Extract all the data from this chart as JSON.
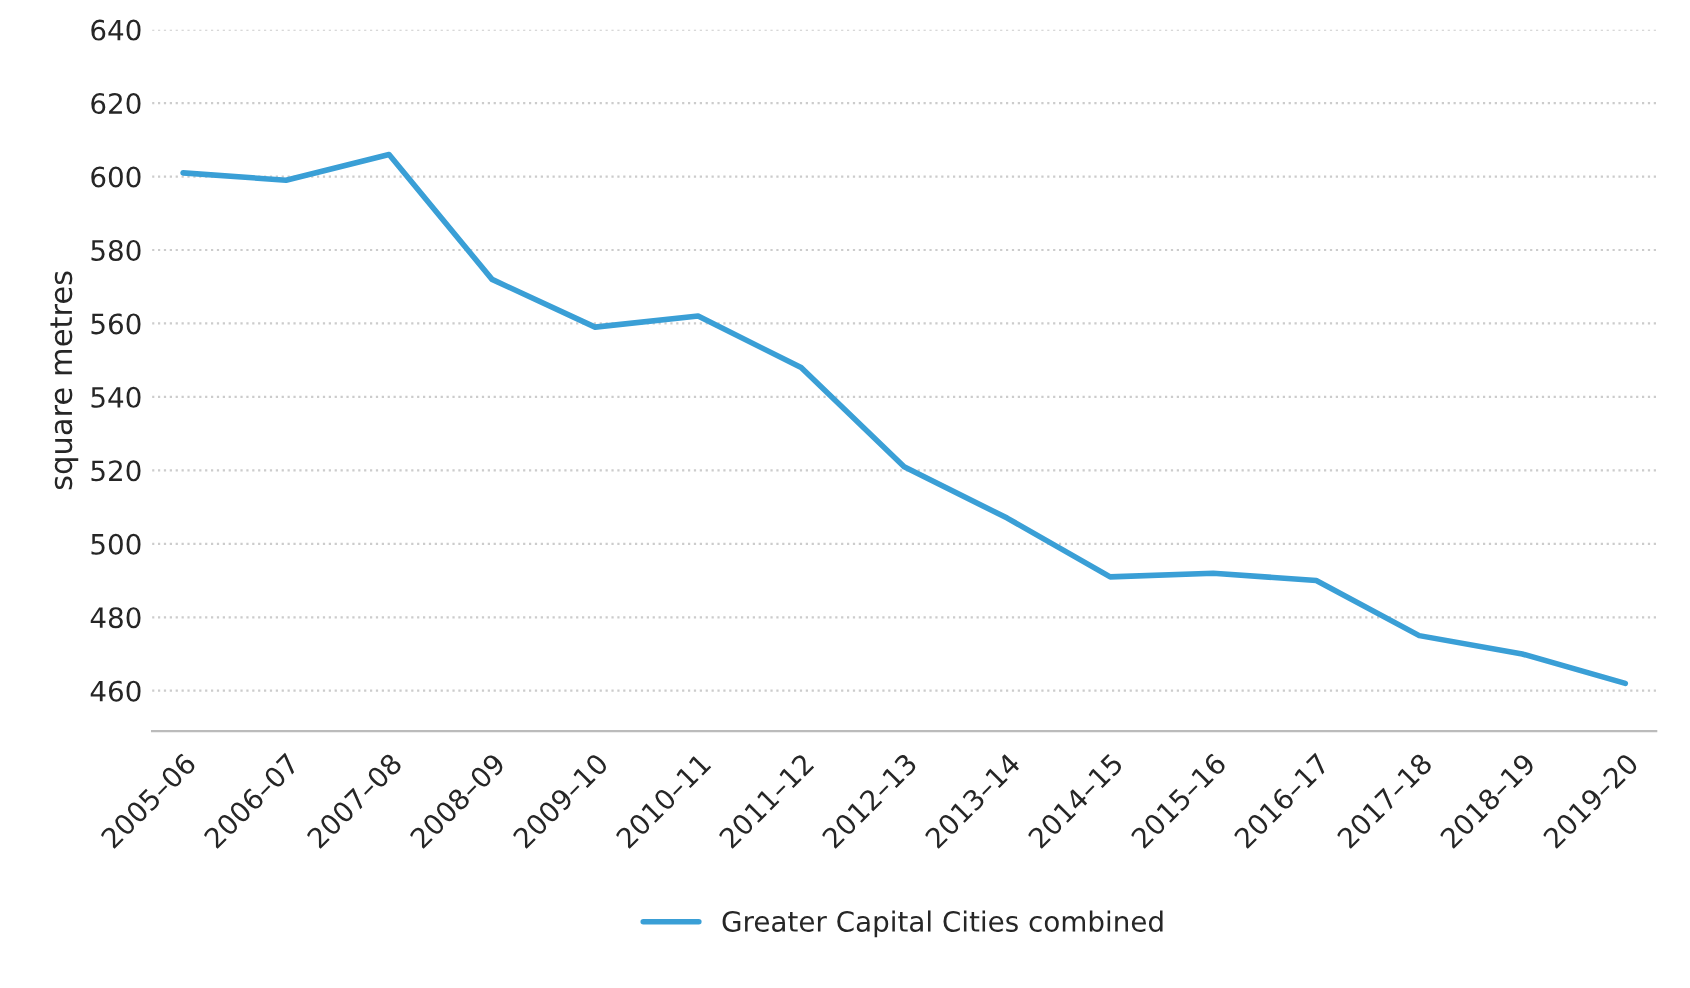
{
  "chart_data": {
    "type": "line",
    "ylabel": "square metres",
    "categories": [
      "2005–06",
      "2006–07",
      "2007–08",
      "2008–09",
      "2009–10",
      "2010–11",
      "2011–12",
      "2012–13",
      "2013–14",
      "2014–15",
      "2015–16",
      "2016–17",
      "2017–18",
      "2018–19",
      "2019–20"
    ],
    "series": [
      {
        "name": "Greater Capital Cities combined",
        "color": "#3a9fd6",
        "values": [
          601,
          599,
          606,
          572,
          559,
          562,
          548,
          521,
          507,
          491,
          492,
          490,
          475,
          470,
          462
        ]
      }
    ],
    "ylim": [
      449,
      640
    ],
    "yticks": [
      460,
      480,
      500,
      520,
      540,
      560,
      580,
      600,
      620,
      640
    ],
    "grid": "y",
    "legend": "bottom",
    "marker": "none",
    "line_style": "solid"
  }
}
